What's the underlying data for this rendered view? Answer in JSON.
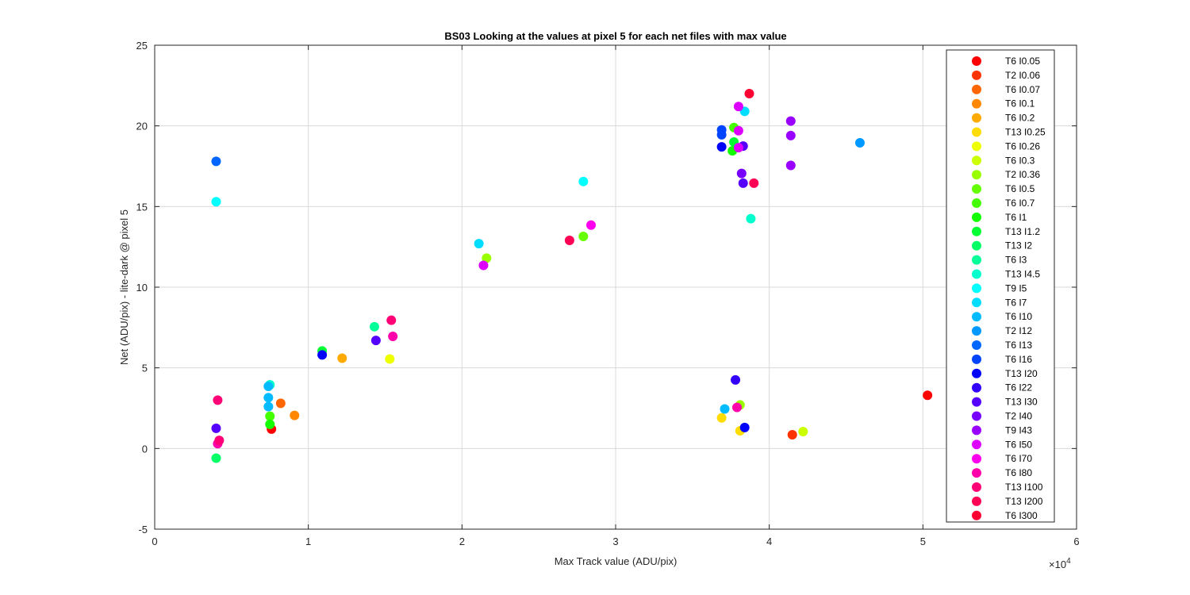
{
  "chart_data": {
    "type": "scatter",
    "title": "BS03  Looking at the values at pixel 5 for each net files with max value",
    "xlabel": "Max Track value (ADU/pix)",
    "ylabel": "Net (ADU/pix) - lite-dark @ pixel 5",
    "x_exponent_label": "×10",
    "x_exponent_power": "4",
    "xlim": [
      0,
      60000
    ],
    "ylim": [
      -5,
      25
    ],
    "x_ticks": [
      0,
      10000,
      20000,
      30000,
      40000,
      50000,
      60000
    ],
    "x_tick_labels": [
      "0",
      "1",
      "2",
      "3",
      "4",
      "5",
      "6"
    ],
    "y_ticks": [
      -5,
      0,
      5,
      10,
      15,
      20,
      25
    ],
    "y_tick_labels": [
      "-5",
      "0",
      "5",
      "10",
      "15",
      "20",
      "25"
    ],
    "grid": true,
    "legend_position": "right inside",
    "series": [
      {
        "name": "T6 I0.05",
        "color": "#ff0000",
        "points": [
          [
            7600,
            1.2
          ],
          [
            50300,
            3.3
          ]
        ]
      },
      {
        "name": "T2 I0.06",
        "color": "#ff3300",
        "points": [
          [
            41500,
            0.85
          ]
        ]
      },
      {
        "name": "T6 I0.07",
        "color": "#ff6600",
        "points": [
          [
            8200,
            2.8
          ]
        ]
      },
      {
        "name": "T6 I0.1",
        "color": "#ff8800",
        "points": [
          [
            9100,
            2.05
          ]
        ]
      },
      {
        "name": "T6 I0.2",
        "color": "#ffaa00",
        "points": [
          [
            12200,
            5.6
          ]
        ]
      },
      {
        "name": "T13 I0.25",
        "color": "#ffdd00",
        "points": [
          [
            38100,
            1.1
          ],
          [
            36900,
            1.9
          ]
        ]
      },
      {
        "name": "T6 I0.26",
        "color": "#eeff00",
        "points": [
          [
            15300,
            5.55
          ]
        ]
      },
      {
        "name": "T6 I0.3",
        "color": "#ccff00",
        "points": [
          [
            42200,
            1.05
          ]
        ]
      },
      {
        "name": "T2 I0.36",
        "color": "#99ff00",
        "points": [
          [
            21600,
            11.8
          ],
          [
            38100,
            2.7
          ]
        ]
      },
      {
        "name": "T6 I0.5",
        "color": "#66ff00",
        "points": [
          [
            27900,
            13.15
          ]
        ]
      },
      {
        "name": "T6 I0.7",
        "color": "#44ff00",
        "points": [
          [
            7500,
            2.0
          ],
          [
            37700,
            19.9
          ]
        ]
      },
      {
        "name": "T6 I1",
        "color": "#11ff00",
        "points": [
          [
            7500,
            1.5
          ],
          [
            37600,
            18.45
          ]
        ]
      },
      {
        "name": "T13 I1.2",
        "color": "#00ff33",
        "points": [
          [
            10900,
            6.05
          ],
          [
            37700,
            19.0
          ]
        ]
      },
      {
        "name": "T13 I2",
        "color": "#00ff66",
        "points": [
          [
            4000,
            -0.6
          ]
        ]
      },
      {
        "name": "T6 I3",
        "color": "#00ff99",
        "points": [
          [
            14300,
            7.55
          ]
        ]
      },
      {
        "name": "T13 I4.5",
        "color": "#00ffcc",
        "points": [
          [
            38800,
            14.25
          ],
          [
            7500,
            3.95
          ]
        ]
      },
      {
        "name": "T9 I5",
        "color": "#00ffff",
        "points": [
          [
            4000,
            15.3
          ],
          [
            27900,
            16.55
          ]
        ]
      },
      {
        "name": "T6 I7",
        "color": "#00ddff",
        "points": [
          [
            21100,
            12.7
          ],
          [
            38400,
            20.9
          ]
        ]
      },
      {
        "name": "T6 I10",
        "color": "#00bbff",
        "points": [
          [
            7400,
            3.85
          ],
          [
            7400,
            3.15
          ],
          [
            7400,
            2.6
          ],
          [
            37100,
            2.45
          ]
        ]
      },
      {
        "name": "T2 I12",
        "color": "#0099ff",
        "points": [
          [
            45900,
            18.95
          ]
        ]
      },
      {
        "name": "T6 I13",
        "color": "#0066ff",
        "points": [
          [
            4000,
            17.8
          ]
        ]
      },
      {
        "name": "T6 I16",
        "color": "#0044ff",
        "points": [
          [
            36900,
            19.75
          ],
          [
            36900,
            19.45
          ]
        ]
      },
      {
        "name": "T13 I20",
        "color": "#0000ff",
        "points": [
          [
            10900,
            5.8
          ],
          [
            38400,
            1.3
          ],
          [
            36900,
            18.7
          ]
        ]
      },
      {
        "name": "T6 I22",
        "color": "#3300ff",
        "points": [
          [
            37800,
            4.25
          ]
        ]
      },
      {
        "name": "T13 I30",
        "color": "#5500ff",
        "points": [
          [
            4000,
            1.25
          ],
          [
            14400,
            6.7
          ],
          [
            38300,
            16.45
          ],
          [
            38300,
            18.75
          ]
        ]
      },
      {
        "name": "T2 I40",
        "color": "#7700ff",
        "points": [
          [
            38200,
            17.05
          ]
        ]
      },
      {
        "name": "T9 I43",
        "color": "#9900ff",
        "points": [
          [
            41400,
            20.3
          ],
          [
            41400,
            19.4
          ],
          [
            41400,
            17.55
          ]
        ]
      },
      {
        "name": "T6 I50",
        "color": "#dd00ff",
        "points": [
          [
            38000,
            21.2
          ],
          [
            38000,
            19.7
          ],
          [
            38000,
            18.65
          ],
          [
            21400,
            11.35
          ]
        ]
      },
      {
        "name": "T6 I70",
        "color": "#ff00ee",
        "points": [
          [
            28400,
            13.85
          ]
        ]
      },
      {
        "name": "T6 I80",
        "color": "#ff00aa",
        "points": [
          [
            4100,
            0.3
          ],
          [
            37900,
            2.55
          ],
          [
            15500,
            6.95
          ]
        ]
      },
      {
        "name": "T13 I100",
        "color": "#ff0077",
        "points": [
          [
            4100,
            3.0
          ],
          [
            15400,
            7.95
          ],
          [
            4200,
            0.5
          ]
        ]
      },
      {
        "name": "T13 I200",
        "color": "#ff0055",
        "points": [
          [
            39000,
            16.45
          ],
          [
            27000,
            12.9
          ]
        ]
      },
      {
        "name": "T6 I300",
        "color": "#ff0033",
        "points": [
          [
            38700,
            22.0
          ]
        ]
      }
    ]
  }
}
